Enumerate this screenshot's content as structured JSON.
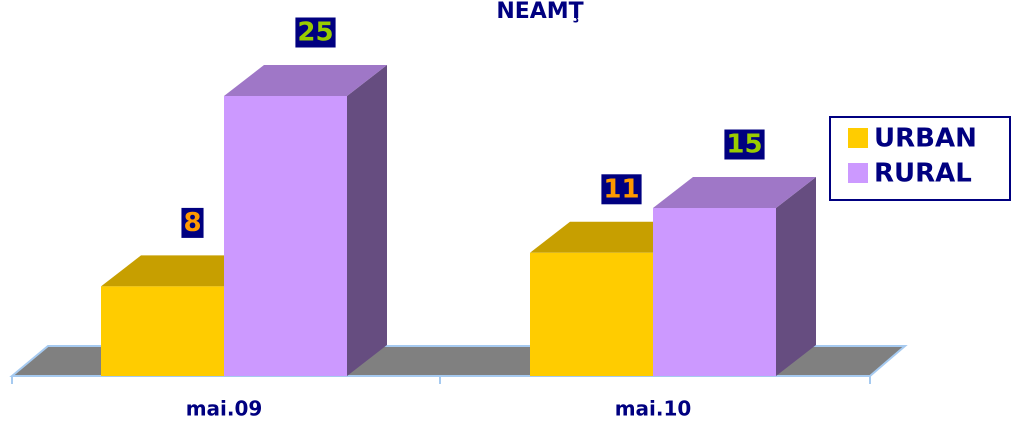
{
  "chart_data": {
    "type": "bar3d",
    "title": "NEAMŢ",
    "categories": [
      "mai.09",
      "mai.10"
    ],
    "series": [
      {
        "name": "URBAN",
        "color": "#ffcc00",
        "label_color": "#ff9900",
        "values": [
          8,
          11
        ]
      },
      {
        "name": "RURAL",
        "color": "#cc99ff",
        "label_color": "#99cc00",
        "values": [
          25,
          15
        ]
      }
    ]
  }
}
